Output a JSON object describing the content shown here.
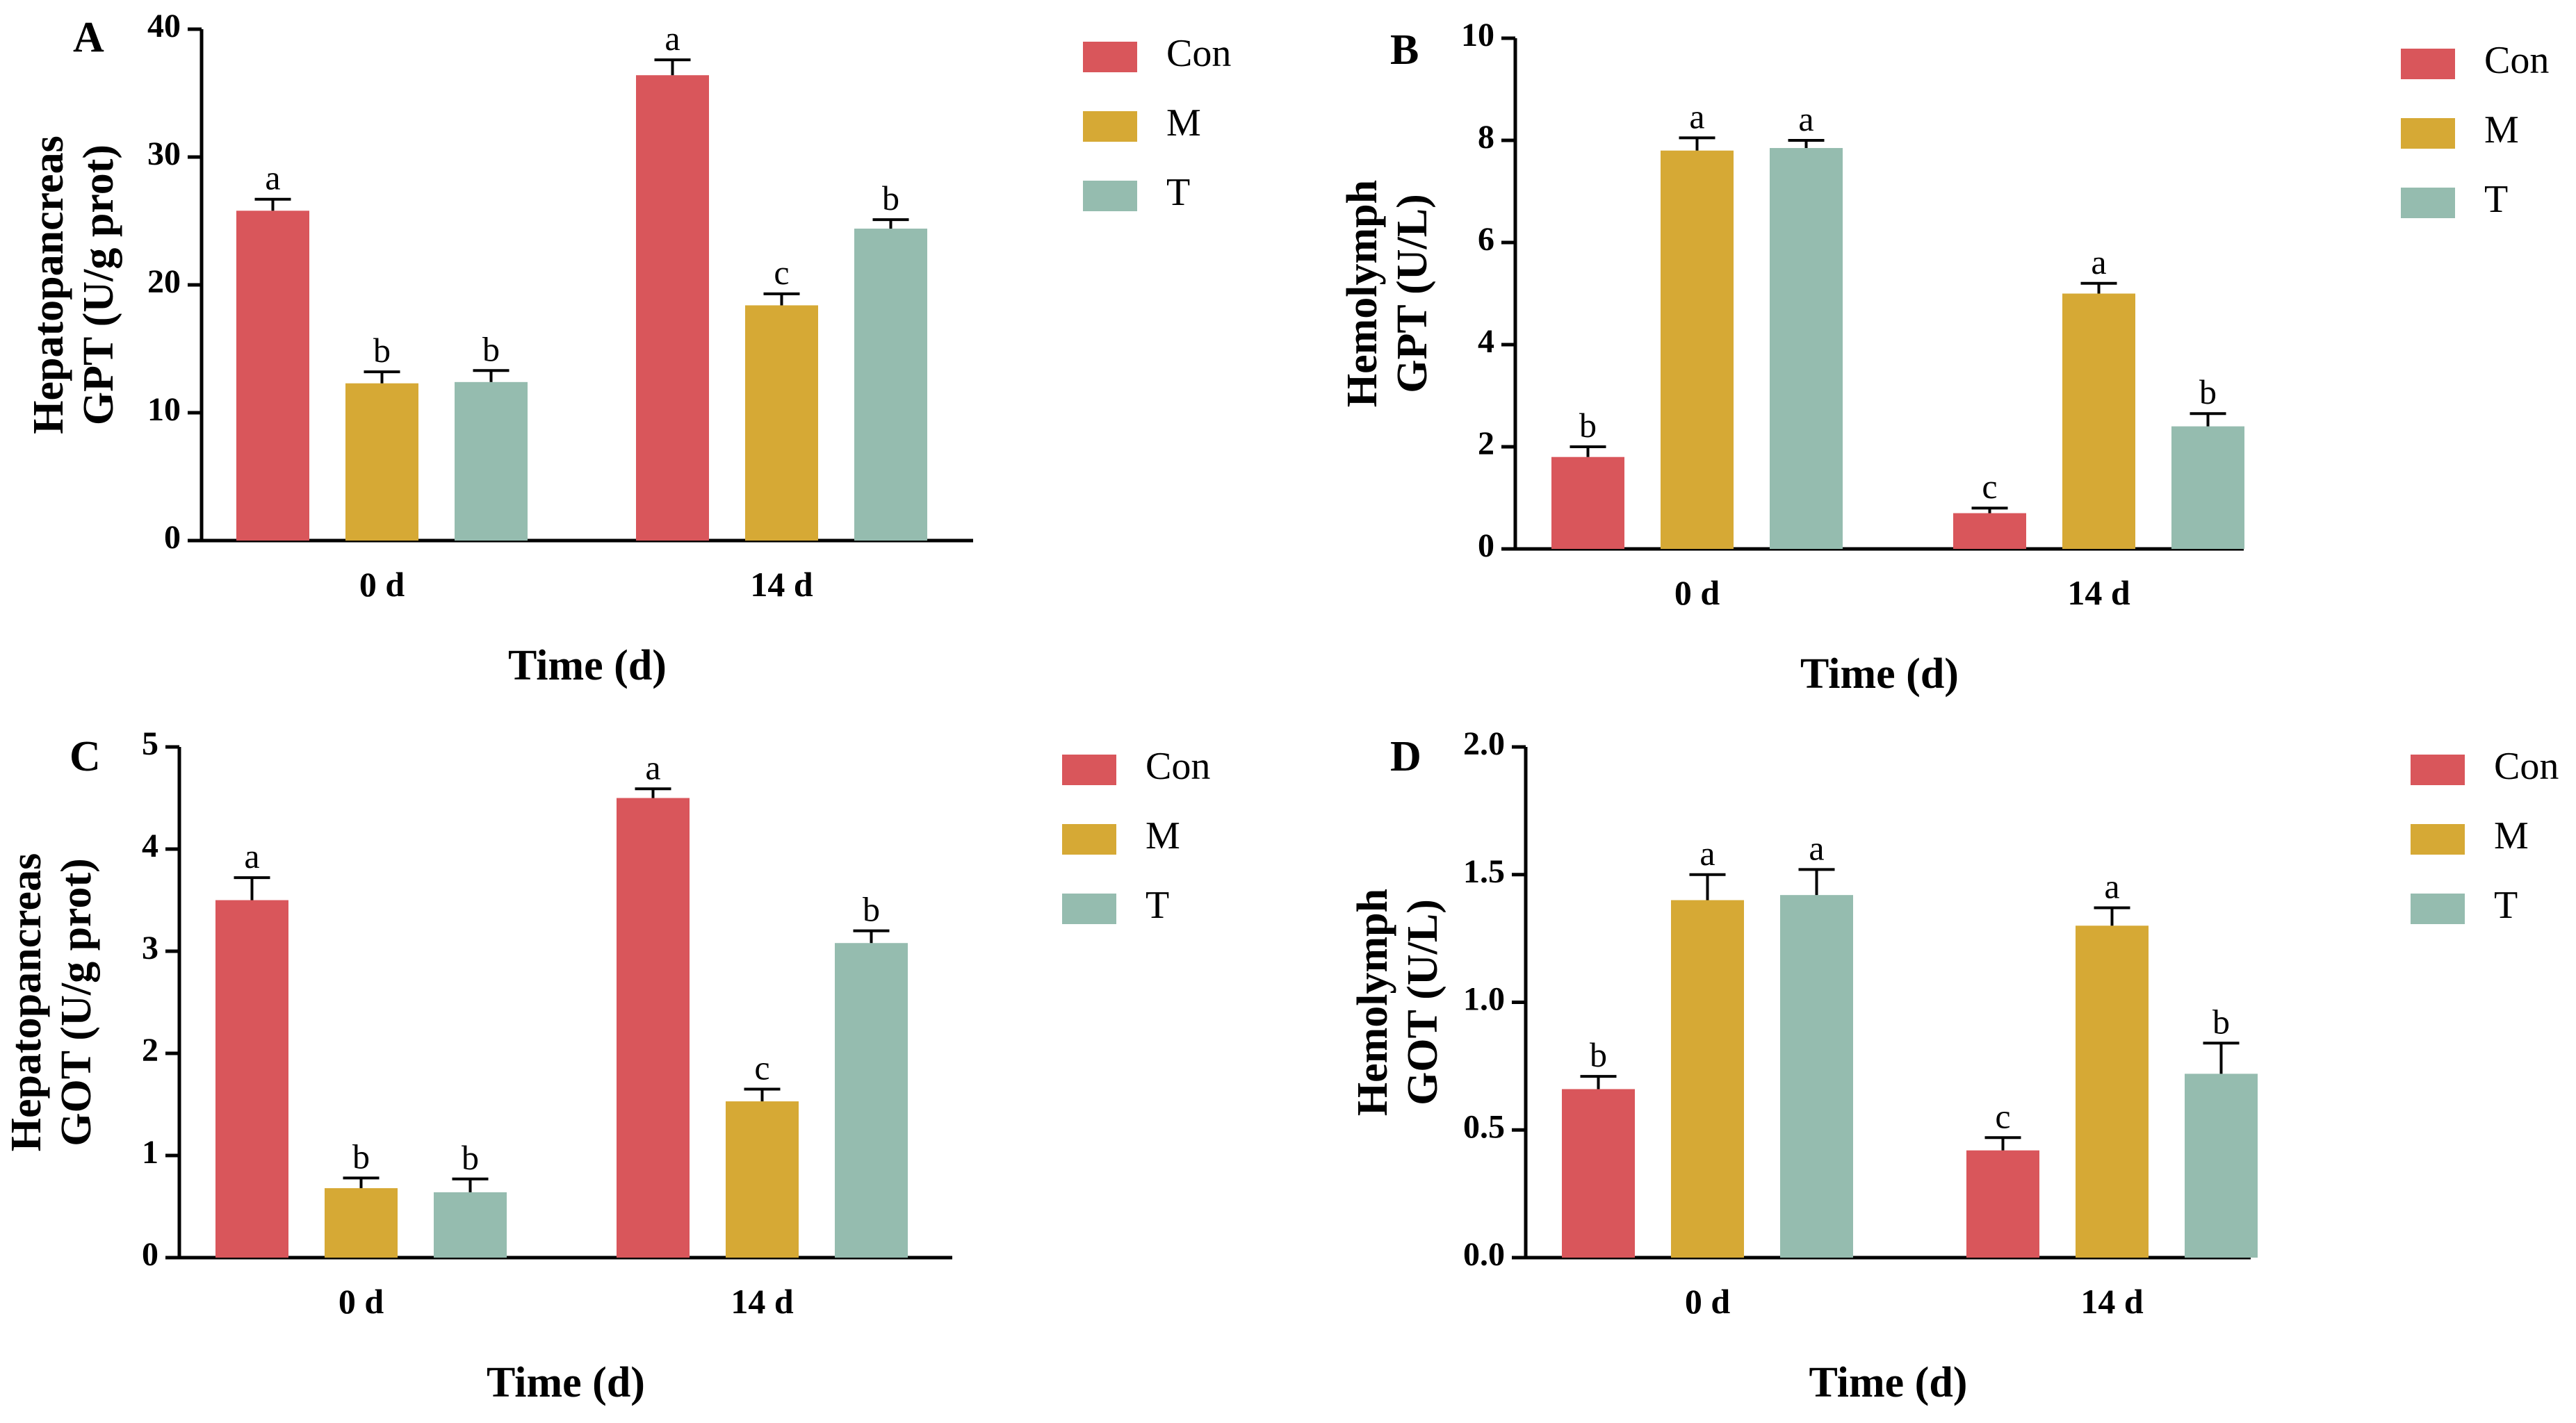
{
  "colors": {
    "Con": "#d9565b",
    "M": "#d6a935",
    "T": "#95bcaf"
  },
  "chart_data": [
    {
      "panel": "A",
      "type": "bar",
      "ylabel_line1": "Hepatopancreas",
      "ylabel_line2": "GPT (U/g prot)",
      "xlabel": "Time (d)",
      "categories": [
        "0 d",
        "14 d"
      ],
      "ylim": [
        0,
        40
      ],
      "yticks": [
        "0",
        "10",
        "20",
        "30",
        "40"
      ],
      "ytick_values": [
        0,
        10,
        20,
        30,
        40
      ],
      "series": [
        {
          "name": "Con",
          "values": [
            25.8,
            36.4
          ],
          "errors": [
            0.9,
            1.2
          ],
          "letters": [
            "a",
            "a"
          ]
        },
        {
          "name": "M",
          "values": [
            12.3,
            18.4
          ],
          "errors": [
            0.9,
            0.9
          ],
          "letters": [
            "b",
            "c"
          ]
        },
        {
          "name": "T",
          "values": [
            12.4,
            24.4
          ],
          "errors": [
            0.9,
            0.7
          ],
          "letters": [
            "b",
            "b"
          ]
        }
      ]
    },
    {
      "panel": "B",
      "type": "bar",
      "ylabel_line1": "Hemolymph",
      "ylabel_line2": "GPT (U/L)",
      "xlabel": "Time (d)",
      "categories": [
        "0 d",
        "14 d"
      ],
      "ylim": [
        0,
        10
      ],
      "yticks": [
        "0",
        "2",
        "4",
        "6",
        "8",
        "10"
      ],
      "ytick_values": [
        0,
        2,
        4,
        6,
        8,
        10
      ],
      "series": [
        {
          "name": "Con",
          "values": [
            1.8,
            0.7
          ],
          "errors": [
            0.2,
            0.1
          ],
          "letters": [
            "b",
            "c"
          ]
        },
        {
          "name": "M",
          "values": [
            7.8,
            5.0
          ],
          "errors": [
            0.25,
            0.2
          ],
          "letters": [
            "a",
            "a"
          ]
        },
        {
          "name": "T",
          "values": [
            7.85,
            2.4
          ],
          "errors": [
            0.15,
            0.25
          ],
          "letters": [
            "a",
            "b"
          ]
        }
      ]
    },
    {
      "panel": "C",
      "type": "bar",
      "ylabel_line1": "Hepatopancreas",
      "ylabel_line2": "GOT (U/g prot)",
      "xlabel": "Time (d)",
      "categories": [
        "0 d",
        "14 d"
      ],
      "ylim": [
        0,
        5
      ],
      "yticks": [
        "0",
        "1",
        "2",
        "3",
        "4",
        "5"
      ],
      "ytick_values": [
        0,
        1,
        2,
        3,
        4,
        5
      ],
      "series": [
        {
          "name": "Con",
          "values": [
            3.5,
            4.5
          ],
          "errors": [
            0.22,
            0.09
          ],
          "letters": [
            "a",
            "a"
          ]
        },
        {
          "name": "M",
          "values": [
            0.68,
            1.53
          ],
          "errors": [
            0.1,
            0.12
          ],
          "letters": [
            "b",
            "c"
          ]
        },
        {
          "name": "T",
          "values": [
            0.64,
            3.08
          ],
          "errors": [
            0.13,
            0.12
          ],
          "letters": [
            "b",
            "b"
          ]
        }
      ]
    },
    {
      "panel": "D",
      "type": "bar",
      "ylabel_line1": "Hemolymph",
      "ylabel_line2": "GOT (U/L)",
      "xlabel": "Time (d)",
      "categories": [
        "0 d",
        "14 d"
      ],
      "ylim": [
        0,
        2
      ],
      "yticks": [
        "0.0",
        "0.5",
        "1.0",
        "1.5",
        "2.0"
      ],
      "ytick_values": [
        0,
        0.5,
        1.0,
        1.5,
        2.0
      ],
      "series": [
        {
          "name": "Con",
          "values": [
            0.66,
            0.42
          ],
          "errors": [
            0.05,
            0.05
          ],
          "letters": [
            "b",
            "c"
          ]
        },
        {
          "name": "M",
          "values": [
            1.4,
            1.3
          ],
          "errors": [
            0.1,
            0.07
          ],
          "letters": [
            "a",
            "a"
          ]
        },
        {
          "name": "T",
          "values": [
            1.42,
            0.72
          ],
          "errors": [
            0.1,
            0.12
          ],
          "letters": [
            "a",
            "b"
          ]
        }
      ]
    }
  ]
}
